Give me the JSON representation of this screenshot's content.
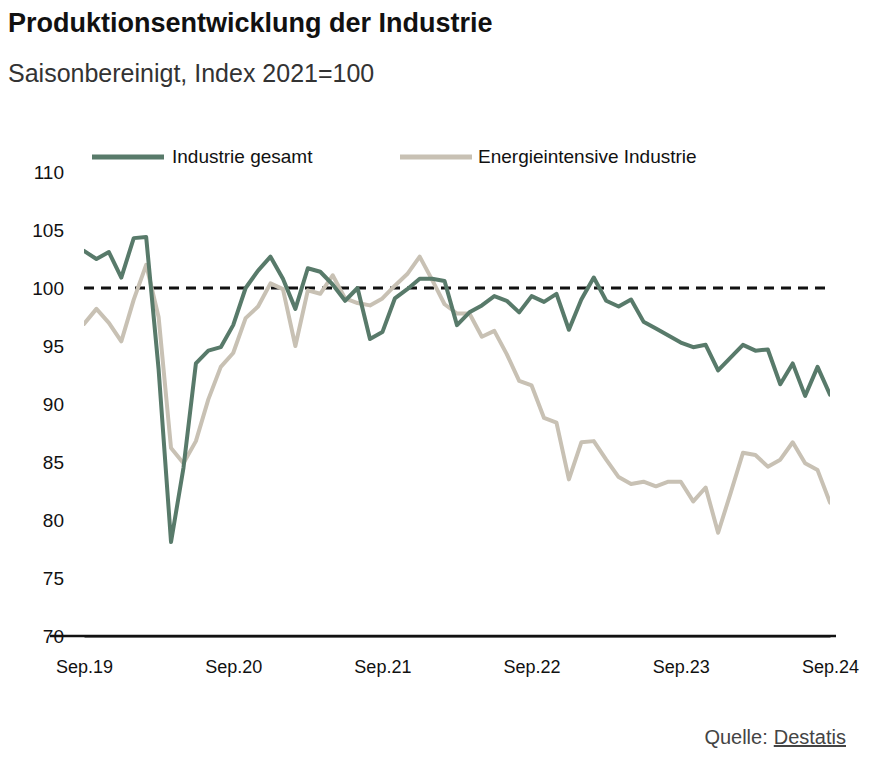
{
  "chart_data": {
    "type": "line",
    "title": "Produktionsentwicklung der Industrie",
    "subtitle": "Saisonbereinigt, Index 2021=100",
    "categories": [
      "Sep.19",
      null,
      null,
      null,
      null,
      null,
      null,
      null,
      null,
      null,
      null,
      null,
      "Sep.20",
      null,
      null,
      null,
      null,
      null,
      null,
      null,
      null,
      null,
      null,
      null,
      "Sep.21",
      null,
      null,
      null,
      null,
      null,
      null,
      null,
      null,
      null,
      null,
      null,
      "Sep.22",
      null,
      null,
      null,
      null,
      null,
      null,
      null,
      null,
      null,
      null,
      null,
      "Sep.23",
      null,
      null,
      null,
      null,
      null,
      null,
      null,
      null,
      null,
      null,
      null,
      "Sep.24"
    ],
    "series": [
      {
        "name": "Industrie gesamt",
        "color": "#587a6a",
        "values": [
          103.2,
          102.5,
          103.1,
          100.9,
          104.3,
          104.4,
          93.0,
          78.1,
          84.5,
          93.5,
          94.6,
          94.9,
          96.8,
          100.0,
          101.5,
          102.7,
          100.8,
          98.2,
          101.7,
          101.4,
          100.3,
          98.9,
          100.0,
          95.6,
          96.2,
          99.1,
          99.9,
          100.8,
          100.8,
          100.6,
          96.8,
          97.9,
          98.5,
          99.3,
          98.9,
          97.9,
          99.3,
          98.8,
          99.5,
          96.4,
          99.0,
          100.9,
          98.9,
          98.4,
          99.0,
          97.1,
          96.5,
          95.9,
          95.3,
          94.9,
          95.1,
          92.9,
          94.0,
          95.1,
          94.6,
          94.7,
          91.7,
          93.5,
          90.7,
          93.2,
          90.8
        ]
      },
      {
        "name": "Energieintensive Industrie",
        "color": "#c8c1b4",
        "values": [
          96.9,
          98.2,
          97.0,
          95.4,
          99.0,
          102.0,
          97.5,
          86.2,
          84.9,
          86.8,
          90.4,
          93.2,
          94.4,
          97.4,
          98.4,
          100.4,
          99.9,
          95.0,
          99.8,
          99.5,
          101.1,
          99.1,
          98.7,
          98.5,
          99.1,
          100.2,
          101.2,
          102.7,
          100.7,
          98.6,
          97.8,
          97.8,
          95.8,
          96.3,
          94.3,
          92.0,
          91.6,
          88.8,
          88.4,
          83.5,
          86.7,
          86.8,
          85.2,
          83.7,
          83.1,
          83.3,
          82.9,
          83.3,
          83.3,
          81.6,
          82.8,
          78.9,
          82.3,
          85.8,
          85.6,
          84.6,
          85.2,
          86.7,
          84.9,
          84.3,
          81.5
        ]
      }
    ],
    "ylim": [
      70,
      110
    ],
    "yticks": [
      70,
      75,
      80,
      85,
      90,
      95,
      100,
      105,
      110
    ],
    "reference_line": 100,
    "grid": false,
    "legend": "top",
    "source_label": "Quelle:",
    "source": "Destatis"
  }
}
